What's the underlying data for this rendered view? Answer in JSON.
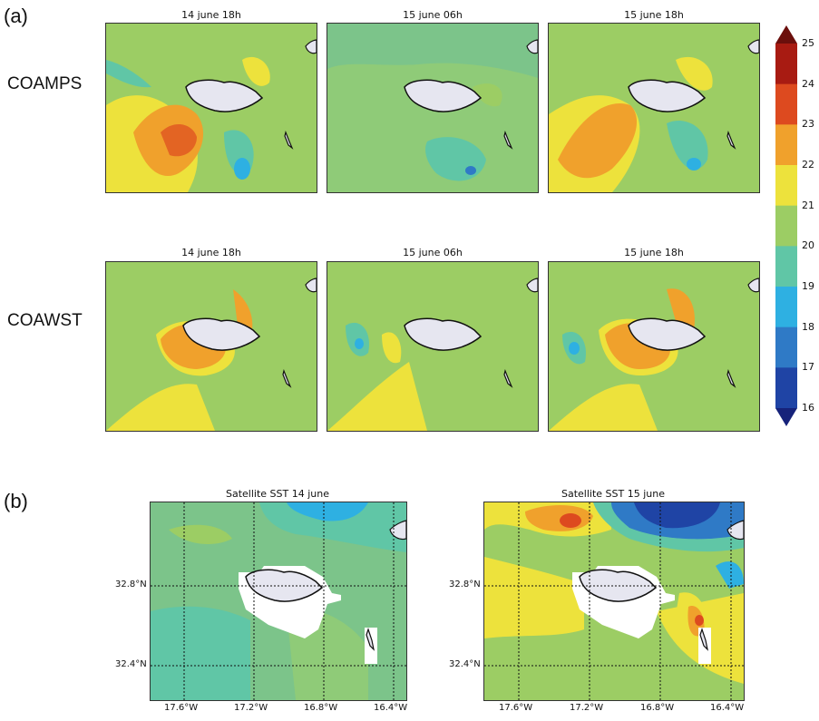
{
  "figure": {
    "label_a": "(a)",
    "label_b": "(b)",
    "row_labels": [
      "COAMPS",
      "COAWST"
    ]
  },
  "panel_titles_a": [
    "14 june 18h",
    "15 june 06h",
    "15 june 18h"
  ],
  "panel_titles_b": [
    "Satellite SST 14 june",
    "Satellite SST 15 june"
  ],
  "colorbar": {
    "ticks": [
      "25",
      "24",
      "23",
      "22",
      "21",
      "20",
      "19",
      "18",
      "17",
      "16"
    ],
    "levels": [
      16,
      17,
      18,
      19,
      20,
      21,
      22,
      23,
      24,
      25
    ],
    "colors": [
      "#16227a",
      "#1f44a5",
      "#2f7ac6",
      "#2eb0e2",
      "#60c6a6",
      "#9ccd64",
      "#ede23c",
      "#f0a12c",
      "#dd4a1f",
      "#a81b12",
      "#6b0f0c"
    ]
  },
  "axes_b": {
    "x_ticks": [
      "17.6°W",
      "17.2°W",
      "16.8°W",
      "16.4°W"
    ],
    "y_ticks": [
      "32.8°N",
      "32.4°N"
    ]
  },
  "chart_data": [
    {
      "type": "heatmap",
      "title": "14 june 18h",
      "row": "COAMPS",
      "variable": "SST",
      "range": [
        16,
        25
      ],
      "dominant_values": [
        21,
        22,
        23
      ]
    },
    {
      "type": "heatmap",
      "title": "15 june 06h",
      "row": "COAMPS",
      "variable": "SST",
      "range": [
        16,
        25
      ],
      "dominant_values": [
        20,
        21
      ]
    },
    {
      "type": "heatmap",
      "title": "15 june 18h",
      "row": "COAMPS",
      "variable": "SST",
      "range": [
        16,
        25
      ],
      "dominant_values": [
        21,
        22,
        23
      ]
    },
    {
      "type": "heatmap",
      "title": "14 june 18h",
      "row": "COAWST",
      "variable": "SST",
      "range": [
        16,
        25
      ],
      "dominant_values": [
        21,
        22,
        23
      ]
    },
    {
      "type": "heatmap",
      "title": "15 june 06h",
      "row": "COAWST",
      "variable": "SST",
      "range": [
        16,
        25
      ],
      "dominant_values": [
        20,
        21,
        22
      ]
    },
    {
      "type": "heatmap",
      "title": "15 june 18h",
      "row": "COAWST",
      "variable": "SST",
      "range": [
        16,
        25
      ],
      "dominant_values": [
        21,
        22,
        23
      ]
    },
    {
      "type": "heatmap",
      "title": "Satellite SST 14 june",
      "variable": "SST",
      "range": [
        16,
        25
      ],
      "dominant_values": [
        19,
        20,
        21
      ],
      "x_ticks": [
        "17.6°W",
        "17.2°W",
        "16.8°W",
        "16.4°W"
      ],
      "y_ticks": [
        "32.8°N",
        "32.4°N"
      ],
      "grid": true
    },
    {
      "type": "heatmap",
      "title": "Satellite SST 15 june",
      "variable": "SST",
      "range": [
        16,
        25
      ],
      "dominant_values": [
        17,
        18,
        21,
        22,
        23
      ],
      "x_ticks": [
        "17.6°W",
        "17.2°W",
        "16.8°W",
        "16.4°W"
      ],
      "y_ticks": [
        "32.8°N",
        "32.4°N"
      ],
      "grid": true
    }
  ]
}
